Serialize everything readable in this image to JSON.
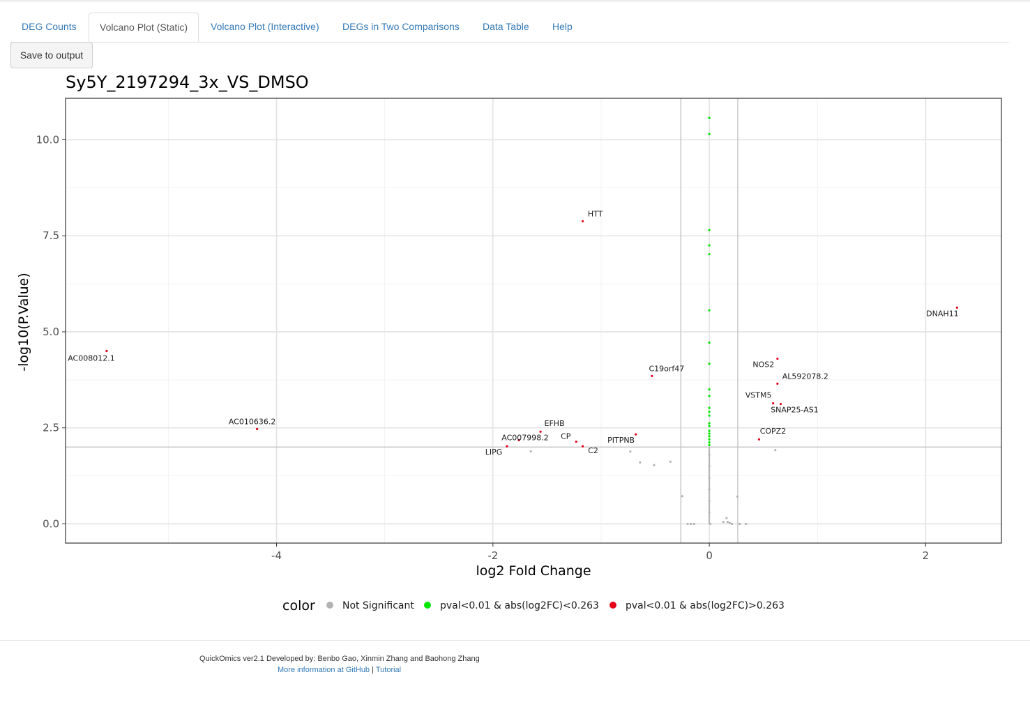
{
  "tabs": [
    {
      "label": "DEG Counts",
      "active": false
    },
    {
      "label": "Volcano Plot (Static)",
      "active": true
    },
    {
      "label": "Volcano Plot (Interactive)",
      "active": false
    },
    {
      "label": "DEGs in Two Comparisons",
      "active": false
    },
    {
      "label": "Data Table",
      "active": false
    },
    {
      "label": "Help",
      "active": false
    }
  ],
  "toolbar": {
    "save_label": "Save to output"
  },
  "chart_data": {
    "type": "scatter",
    "title": "Sy5Y_2197294_3x_VS_DMSO",
    "xlabel": "log2 Fold Change",
    "ylabel": "-log10(P.Value)",
    "xlim": [
      -5.95,
      2.7
    ],
    "ylim": [
      -0.5,
      11.08
    ],
    "x_ticks": [
      -4,
      -2,
      0,
      2
    ],
    "x_tick_labels": [
      "-4",
      "-2",
      "0",
      "2"
    ],
    "y_ticks": [
      0,
      2.5,
      5,
      7.5,
      10
    ],
    "y_tick_labels": [
      "0.0",
      "2.5",
      "5.0",
      "7.5",
      "10.0"
    ],
    "grid": true,
    "hline": 2,
    "vlines": [
      -0.263,
      0.263
    ],
    "legend": {
      "title": "color",
      "position": "bottom",
      "entries": [
        {
          "label": "Not Significant",
          "color": "#b3b3b3"
        },
        {
          "label": "pval<0.01 & abs(log2FC)<0.263",
          "color": "#00e600"
        },
        {
          "label": "pval<0.01 & abs(log2FC)>0.263",
          "color": "#e6001a"
        }
      ]
    },
    "series": [
      {
        "name": "Not Significant",
        "color": "#b3b3b3",
        "points": [
          [
            -1.65,
            1.89
          ],
          [
            -0.73,
            1.88
          ],
          [
            -0.64,
            1.6
          ],
          [
            -0.51,
            1.53
          ],
          [
            -0.36,
            1.62
          ],
          [
            -0.25,
            0.72
          ],
          [
            -0.2,
            0.0
          ],
          [
            -0.17,
            0.0
          ],
          [
            -0.14,
            0.0
          ],
          [
            0.61,
            1.92
          ],
          [
            0.26,
            0.71
          ],
          [
            0.16,
            0.15
          ],
          [
            0.13,
            0.05
          ],
          [
            0.17,
            0.05
          ],
          [
            0.19,
            0.02
          ],
          [
            0.21,
            0.0
          ],
          [
            0.28,
            0.0
          ],
          [
            0.34,
            0.0
          ],
          [
            0.01,
            0.0
          ],
          [
            0.0,
            0.3
          ],
          [
            0.0,
            0.6
          ],
          [
            0.0,
            0.9
          ],
          [
            0.0,
            1.2
          ],
          [
            0.0,
            1.5
          ],
          [
            0.0,
            1.8
          ]
        ]
      },
      {
        "name": "pval<0.01 & abs(log2FC)<0.263",
        "color": "#00e600",
        "points": [
          [
            0.0,
            10.57
          ],
          [
            0.0,
            10.15
          ],
          [
            0.0,
            7.65
          ],
          [
            0.0,
            7.25
          ],
          [
            0.0,
            7.02
          ],
          [
            0.0,
            5.56
          ],
          [
            0.0,
            4.72
          ],
          [
            0.0,
            4.17
          ],
          [
            0.0,
            3.5
          ],
          [
            0.0,
            3.33
          ],
          [
            0.0,
            3.02
          ],
          [
            0.0,
            2.92
          ],
          [
            0.0,
            2.82
          ],
          [
            0.0,
            2.62
          ],
          [
            0.0,
            2.55
          ],
          [
            0.0,
            2.42
          ],
          [
            0.0,
            2.35
          ],
          [
            0.0,
            2.28
          ],
          [
            0.0,
            2.2
          ],
          [
            0.0,
            2.12
          ],
          [
            0.0,
            2.05
          ]
        ]
      },
      {
        "name": "pval<0.01 & abs(log2FC)>0.263",
        "color": "#e6001a",
        "points": [
          [
            -5.57,
            4.5
          ],
          [
            -4.18,
            2.47
          ],
          [
            -1.17,
            7.88
          ],
          [
            -1.87,
            2.02
          ],
          [
            -1.56,
            2.4
          ],
          [
            -1.76,
            2.18
          ],
          [
            -1.23,
            2.14
          ],
          [
            -1.17,
            2.02
          ],
          [
            -0.68,
            2.33
          ],
          [
            -0.53,
            3.85
          ],
          [
            0.46,
            2.2
          ],
          [
            0.59,
            3.14
          ],
          [
            0.66,
            3.12
          ],
          [
            0.63,
            3.65
          ],
          [
            0.63,
            4.3
          ],
          [
            2.29,
            5.63
          ]
        ]
      }
    ],
    "labels": [
      {
        "text": "AC008012.1",
        "x": -5.57,
        "y": 4.5
      },
      {
        "text": "AC010636.2",
        "x": -4.18,
        "y": 2.47
      },
      {
        "text": "HTT",
        "x": -1.17,
        "y": 7.88
      },
      {
        "text": "EFHB",
        "x": -1.56,
        "y": 2.4
      },
      {
        "text": "AC007998.2",
        "x": -1.76,
        "y": 2.18
      },
      {
        "text": "CP",
        "x": -1.23,
        "y": 2.14
      },
      {
        "text": "LIPG",
        "x": -1.87,
        "y": 2.02
      },
      {
        "text": "C2",
        "x": -1.17,
        "y": 2.02
      },
      {
        "text": "PITPNB",
        "x": -0.68,
        "y": 2.33
      },
      {
        "text": "C19orf47",
        "x": -0.53,
        "y": 3.85
      },
      {
        "text": "NOS2",
        "x": 0.63,
        "y": 4.3
      },
      {
        "text": "AL592078.2",
        "x": 0.63,
        "y": 3.65
      },
      {
        "text": "VSTM5",
        "x": 0.59,
        "y": 3.14
      },
      {
        "text": "SNAP25-AS1",
        "x": 0.66,
        "y": 3.12
      },
      {
        "text": "COPZ2",
        "x": 0.46,
        "y": 2.2
      },
      {
        "text": "DNAH11",
        "x": 2.29,
        "y": 5.63
      }
    ]
  },
  "footer": {
    "credit": "QuickOmics ver2.1 Developed by: Benbo Gao, Xinmin Zhang and Baohong Zhang",
    "github_link": "More information at GitHub",
    "separator": "|",
    "tutorial_link": "Tutorial"
  }
}
